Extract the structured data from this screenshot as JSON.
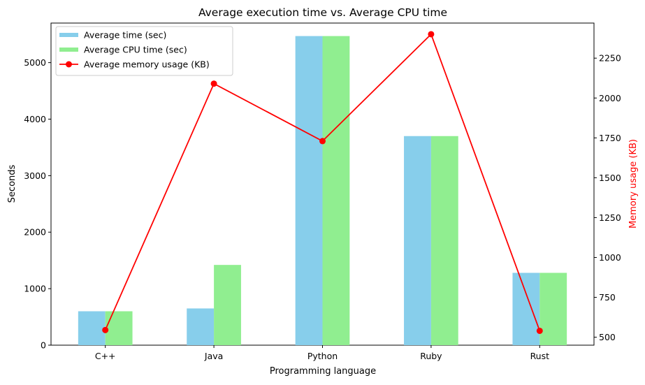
{
  "chart_data": {
    "type": "bar",
    "title": "Average execution time vs. Average CPU time",
    "xlabel": "Programming language",
    "ylabel": "Seconds",
    "y2label": "Memory usage (KB)",
    "categories": [
      "C++",
      "Java",
      "Python",
      "Ruby",
      "Rust"
    ],
    "ylim": [
      0,
      5700
    ],
    "y_ticks": [
      0,
      1000,
      2000,
      3000,
      4000,
      5000
    ],
    "y2lim": [
      450,
      2470
    ],
    "y2_ticks": [
      500,
      750,
      1000,
      1250,
      1500,
      1750,
      2000,
      2250
    ],
    "series": [
      {
        "name": "Average time (sec)",
        "kind": "bar",
        "color": "#87ceeb",
        "values": [
          600,
          650,
          5470,
          3700,
          1280
        ]
      },
      {
        "name": "Average CPU time (sec)",
        "kind": "bar",
        "color": "#90ee90",
        "values": [
          600,
          1420,
          5470,
          3700,
          1280
        ]
      },
      {
        "name": "Average memory usage (KB)",
        "kind": "line",
        "axis": "right",
        "marker": "circle",
        "color": "#ff0000",
        "values": [
          545,
          2090,
          1730,
          2400,
          540
        ]
      }
    ],
    "legend_position": "top-left",
    "grid": false
  }
}
